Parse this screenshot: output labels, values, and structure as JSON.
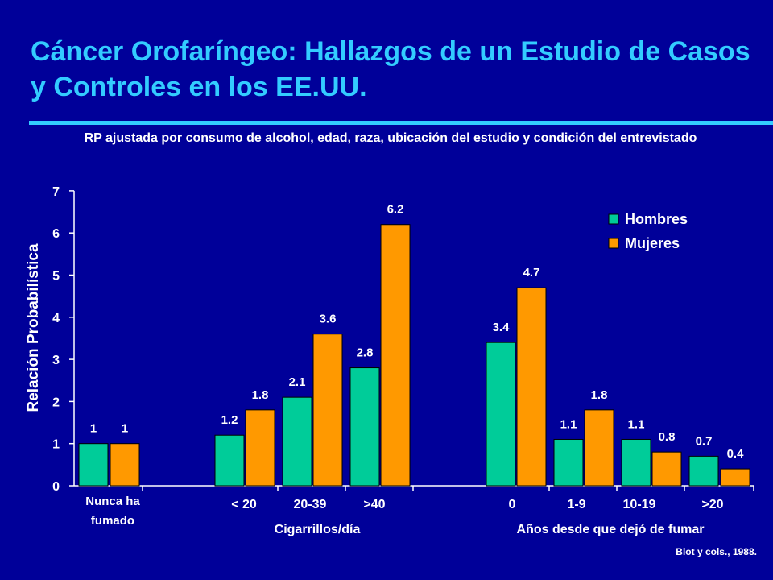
{
  "title": "Cáncer Orofaríngeo: Hallazgos de un Estudio de Casos y Controles en los EE.UU.",
  "subtitle": "RP ajustada por consumo de alcohol, edad, raza, ubicación del estudio y condición del entrevistado",
  "source": "Blot y cols., 1988.",
  "colors": {
    "background": "#000099",
    "title": "#33ccff",
    "hombres": "#00cc99",
    "mujeres": "#ff9900",
    "text": "#ffffff"
  },
  "chart_data": {
    "type": "bar",
    "ylabel": "Relación Probabilística",
    "ylim": [
      0,
      7
    ],
    "yticks": [
      "0",
      "1",
      "2",
      "3",
      "4",
      "5",
      "6",
      "7"
    ],
    "legend_position": "top-right",
    "categories": [
      "Nunca ha fumado",
      "< 20",
      "20-39",
      ">40",
      "0",
      "1-9",
      "10-19",
      ">20"
    ],
    "groups": [
      {
        "label": "",
        "categories": [
          "Nunca ha fumado"
        ]
      },
      {
        "label": "Cigarrillos/día",
        "categories": [
          "< 20",
          "20-39",
          ">40"
        ]
      },
      {
        "label": "Años desde que dejó de fumar",
        "categories": [
          "0",
          "1-9",
          "10-19",
          ">20"
        ]
      }
    ],
    "series": [
      {
        "name": "Hombres",
        "values": [
          1,
          1.2,
          2.1,
          2.8,
          3.4,
          1.1,
          1.1,
          0.7
        ],
        "labels": [
          "1",
          "1.2",
          "2.1",
          "2.8",
          "3.4",
          "1.1",
          "1.1",
          "0.7"
        ]
      },
      {
        "name": "Mujeres",
        "values": [
          1,
          1.8,
          3.6,
          6.2,
          4.7,
          1.8,
          0.8,
          0.4
        ],
        "labels": [
          "1",
          "1.8",
          "3.6",
          "6.2",
          "4.7",
          "1.8",
          "0.8",
          "0.4"
        ]
      }
    ]
  }
}
